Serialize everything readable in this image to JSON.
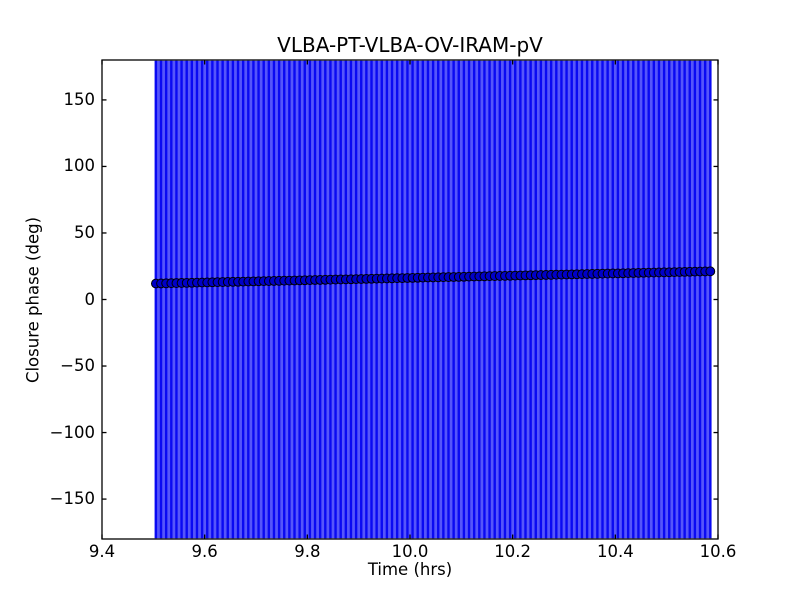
{
  "figure": {
    "title": "VLBA-PT-VLBA-OV-IRAM-pV",
    "xlabel": "Time (hrs)",
    "ylabel": "Closure phase (deg)"
  },
  "colors": {
    "background": "#ffffff",
    "spine": "#000000",
    "text": "#000000",
    "error_bar_stroke": "#0a0af2",
    "error_bar_fill_light": "#5656fa",
    "marker_fill": "#0000c8",
    "marker_edge": "#000000"
  },
  "chart_data": {
    "type": "scatter",
    "title": "VLBA-PT-VLBA-OV-IRAM-pV",
    "xlabel": "Time (hrs)",
    "ylabel": "Closure phase (deg)",
    "xlim": [
      9.4,
      10.6
    ],
    "ylim": [
      -180,
      180
    ],
    "grid": false,
    "legend": false,
    "x_ticks": [
      9.4,
      9.6,
      9.8,
      10.0,
      10.2,
      10.4,
      10.6
    ],
    "x_tick_labels": [
      "9.4",
      "9.6",
      "9.8",
      "10.0",
      "10.2",
      "10.4",
      "10.6"
    ],
    "y_ticks": [
      150,
      100,
      50,
      0,
      -50,
      -100,
      -150
    ],
    "y_tick_labels": [
      "150",
      "100",
      "50",
      "0",
      "−50",
      "−100",
      "−150"
    ],
    "series": [
      {
        "name": "closure phase",
        "marker": "o",
        "error_bars_span_full_axis": true,
        "error_bar_halfwidth_deg": 180,
        "t": [
          9.505,
          9.515,
          9.525,
          9.535,
          9.545,
          9.555,
          9.565,
          9.575,
          9.585,
          9.595,
          9.605,
          9.615,
          9.625,
          9.635,
          9.645,
          9.655,
          9.665,
          9.675,
          9.685,
          9.695,
          9.705,
          9.715,
          9.725,
          9.735,
          9.745,
          9.755,
          9.765,
          9.775,
          9.785,
          9.795,
          9.805,
          9.815,
          9.825,
          9.835,
          9.845,
          9.855,
          9.865,
          9.875,
          9.885,
          9.895,
          9.905,
          9.915,
          9.925,
          9.935,
          9.945,
          9.955,
          9.965,
          9.975,
          9.985,
          9.995,
          10.005,
          10.015,
          10.025,
          10.035,
          10.045,
          10.055,
          10.065,
          10.075,
          10.085,
          10.095,
          10.105,
          10.115,
          10.125,
          10.135,
          10.145,
          10.155,
          10.165,
          10.175,
          10.185,
          10.195,
          10.205,
          10.215,
          10.225,
          10.235,
          10.245,
          10.255,
          10.265,
          10.275,
          10.285,
          10.295,
          10.305,
          10.315,
          10.325,
          10.335,
          10.345,
          10.355,
          10.365,
          10.375,
          10.385,
          10.395,
          10.405,
          10.415,
          10.425,
          10.435,
          10.445,
          10.455,
          10.465,
          10.475,
          10.485,
          10.495,
          10.505,
          10.515,
          10.525,
          10.535,
          10.545,
          10.555,
          10.565,
          10.575,
          10.585
        ],
        "phase_deg": [
          12.0,
          12.09,
          12.17,
          12.26,
          12.34,
          12.43,
          12.51,
          12.6,
          12.68,
          12.77,
          12.85,
          12.94,
          13.02,
          13.11,
          13.19,
          13.28,
          13.36,
          13.45,
          13.53,
          13.62,
          13.7,
          13.79,
          13.87,
          13.96,
          14.04,
          14.13,
          14.21,
          14.3,
          14.38,
          14.47,
          14.55,
          14.64,
          14.72,
          14.81,
          14.89,
          14.98,
          15.06,
          15.15,
          15.23,
          15.32,
          15.4,
          15.49,
          15.57,
          15.66,
          15.74,
          15.83,
          15.91,
          16.0,
          16.08,
          16.17,
          16.25,
          16.34,
          16.42,
          16.51,
          16.59,
          16.68,
          16.76,
          16.85,
          16.93,
          17.02,
          17.1,
          17.19,
          17.27,
          17.36,
          17.44,
          17.53,
          17.61,
          17.7,
          17.78,
          17.87,
          17.95,
          18.04,
          18.12,
          18.21,
          18.29,
          18.38,
          18.46,
          18.55,
          18.63,
          18.72,
          18.8,
          18.89,
          18.97,
          19.06,
          19.14,
          19.23,
          19.31,
          19.4,
          19.48,
          19.57,
          19.65,
          19.74,
          19.82,
          19.91,
          19.99,
          20.08,
          20.16,
          20.25,
          20.33,
          20.42,
          20.5,
          20.59,
          20.67,
          20.76,
          20.84,
          20.93,
          21.01,
          21.1,
          21.18
        ]
      }
    ]
  }
}
